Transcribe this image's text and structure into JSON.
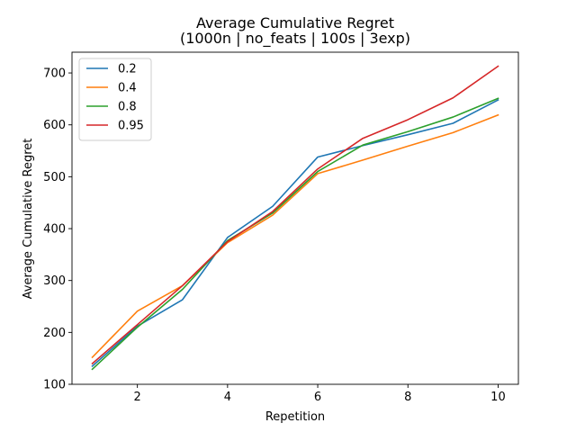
{
  "chart_data": {
    "type": "line",
    "title": "Average Cumulative Regret",
    "subtitle": "(1000n | no_feats | 100s | 3exp)",
    "xlabel": "Repetition",
    "ylabel": "Average Cumulative Regret",
    "x": [
      1,
      2,
      3,
      4,
      5,
      6,
      7,
      8,
      9,
      10
    ],
    "xlim": [
      0.55,
      10.45
    ],
    "ylim": [
      100,
      740
    ],
    "xticks": [
      2,
      4,
      6,
      8,
      10
    ],
    "yticks": [
      100,
      200,
      300,
      400,
      500,
      600,
      700
    ],
    "grid": false,
    "legend_position": "top-left",
    "series": [
      {
        "name": "0.2",
        "color": "#1f77b4",
        "values": [
          135,
          212,
          263,
          383,
          443,
          538,
          560,
          581,
          603,
          648
        ]
      },
      {
        "name": "0.4",
        "color": "#ff7f0e",
        "values": [
          152,
          241,
          290,
          373,
          426,
          506,
          532,
          559,
          585,
          619
        ]
      },
      {
        "name": "0.8",
        "color": "#2ca02c",
        "values": [
          129,
          210,
          283,
          377,
          430,
          510,
          561,
          587,
          615,
          651
        ]
      },
      {
        "name": "0.95",
        "color": "#d62728",
        "values": [
          140,
          215,
          290,
          375,
          433,
          515,
          574,
          610,
          652,
          713
        ]
      }
    ]
  }
}
